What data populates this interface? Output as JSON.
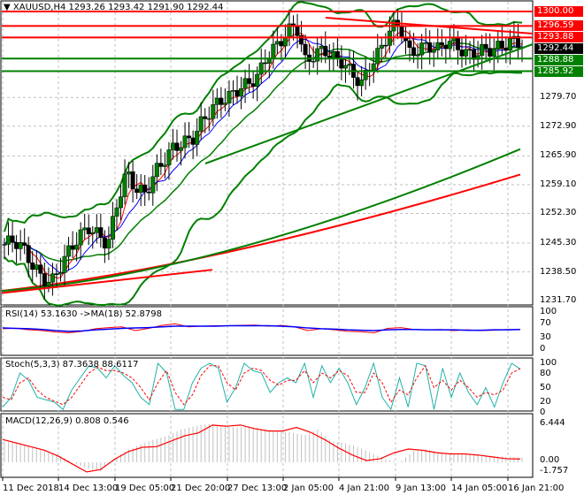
{
  "header": {
    "symbol": "XAUUSD,H4",
    "ohlc": "1293.26 1293.42 1291.90 1292.44"
  },
  "levels": [
    {
      "label": "1300.00",
      "value": 1300.0,
      "color": "#ff0000"
    },
    {
      "label": "1296.59",
      "value": 1296.59,
      "color": "#ff0000"
    },
    {
      "label": "1293.88",
      "value": 1293.88,
      "color": "#ff0000"
    },
    {
      "label": "1292.44",
      "value": 1292.44,
      "color": "#000000"
    },
    {
      "label": "1288.88",
      "value": 1288.88,
      "color": "#008000"
    },
    {
      "label": "1285.92",
      "value": 1285.92,
      "color": "#008000"
    }
  ],
  "price_axis": [
    "1279.70",
    "1272.90",
    "1265.90",
    "1259.10",
    "1252.30",
    "1245.30",
    "1238.50",
    "1231.70"
  ],
  "rsi": {
    "label": "RSI(14) 53.1630  ->MA(18) 52.8798",
    "axis": [
      "100",
      "70",
      "30",
      "0"
    ]
  },
  "stoch": {
    "label": "Stoch(5,3,3) 87.3638 88.6117",
    "axis": [
      "100",
      "80",
      "50",
      "20",
      "0"
    ]
  },
  "macd": {
    "label": "MACD(12,26,9) 0.808 0.546",
    "axis": [
      "6.444",
      "0.00",
      "-1.757"
    ]
  },
  "time_axis": [
    "11 Dec 2018",
    "14 Dec 13:00",
    "19 Dec 05:00",
    "21 Dec 20:00",
    "27 Dec 13:00",
    "2 Jan 05:00",
    "4 Jan 21:00",
    "9 Jan 13:00",
    "14 Jan 05:00",
    "16 Jan 21:00"
  ],
  "colors": {
    "up": "#008000",
    "down": "#000000",
    "bands": "#008000",
    "resistance": "#ff0000",
    "support": "#008000",
    "rsi": "#ff0000",
    "rsi_ma": "#0000ff",
    "stoch_main": "#20b2aa",
    "stoch_signal": "#ff0000",
    "macd_signal": "#ff0000",
    "macd_hist": "#c0c0c0"
  },
  "chart_data": {
    "type": "candlestick",
    "symbol": "XAUUSD",
    "timeframe": "H4",
    "ylim": [
      1231.7,
      1300.0
    ],
    "close_path": [
      1245,
      1246,
      1244,
      1240,
      1237,
      1236,
      1240,
      1244,
      1247,
      1249,
      1247,
      1245,
      1255,
      1262,
      1258,
      1257,
      1262,
      1265,
      1268,
      1269,
      1270,
      1274,
      1277,
      1279,
      1280,
      1282,
      1283,
      1285,
      1290,
      1292,
      1295,
      1297,
      1288,
      1290,
      1291,
      1289,
      1288,
      1285,
      1283,
      1288,
      1291,
      1296,
      1297,
      1290,
      1291,
      1292,
      1291,
      1293,
      1292,
      1290,
      1290,
      1291,
      1291,
      1292,
      1293,
      1292.44
    ],
    "rsi_values": [
      55,
      56,
      52,
      50,
      46,
      44,
      48,
      55,
      58,
      60,
      50,
      56,
      64,
      68,
      60,
      62,
      63,
      63,
      64,
      65,
      62,
      64,
      60,
      50,
      55,
      52,
      48,
      47,
      44,
      56,
      58,
      53,
      52,
      53,
      50,
      52,
      50,
      51,
      53,
      53
    ],
    "rsi_ma_values": [
      57,
      56,
      55,
      53,
      50,
      48,
      49,
      52,
      54,
      56,
      57,
      58,
      60,
      62,
      62,
      62,
      62,
      63,
      63,
      63,
      63,
      62,
      60,
      57,
      55,
      54,
      52,
      51,
      50,
      52,
      53,
      53,
      52,
      52,
      52,
      51,
      51,
      52,
      52,
      53
    ],
    "stoch_k": [
      10,
      30,
      80,
      65,
      30,
      25,
      20,
      5,
      45,
      70,
      95,
      90,
      70,
      95,
      75,
      60,
      30,
      15,
      100,
      80,
      5,
      5,
      60,
      90,
      100,
      90,
      20,
      50,
      100,
      85,
      80,
      40,
      60,
      70,
      60,
      100,
      30,
      95,
      60,
      90,
      60,
      15,
      50,
      100,
      30,
      5,
      70,
      10,
      100,
      95,
      5,
      90,
      30,
      80,
      40,
      15,
      50,
      10,
      60,
      100,
      88
    ],
    "stoch_d": [
      30,
      25,
      60,
      70,
      45,
      30,
      22,
      15,
      30,
      55,
      80,
      92,
      85,
      85,
      80,
      70,
      50,
      25,
      60,
      85,
      40,
      15,
      35,
      75,
      95,
      95,
      60,
      45,
      80,
      90,
      85,
      65,
      55,
      65,
      65,
      85,
      60,
      80,
      70,
      85,
      75,
      40,
      40,
      80,
      60,
      20,
      45,
      35,
      70,
      95,
      50,
      65,
      45,
      65,
      50,
      30,
      40,
      35,
      45,
      80,
      89
    ],
    "macd_hist": [
      3.5,
      3,
      2.5,
      2,
      1.2,
      0,
      -1,
      -1.5,
      0.5,
      2,
      3,
      3.8,
      4.5,
      5.5,
      6,
      6.4,
      6,
      5.8,
      6,
      5.5,
      5.2,
      5,
      4.5,
      5.5,
      3.5,
      3.2,
      2.5,
      1.5,
      0.5,
      0,
      1.8,
      2.2,
      1.6,
      1.4,
      1.3,
      1.2,
      1.0,
      0.9,
      0.8
    ],
    "macd_signal": [
      3.8,
      3.2,
      2.6,
      2.0,
      1.0,
      -0.3,
      -1.6,
      -1.2,
      0.5,
      1.8,
      2.5,
      2.6,
      3.5,
      4.4,
      4.9,
      6.2,
      6.0,
      6.2,
      5.6,
      5.2,
      5.2,
      5.8,
      5.0,
      3.8,
      2.4,
      1.2,
      0.3,
      0.6,
      1.6,
      2.2,
      2.0,
      1.6,
      1.4,
      1.4,
      1.2,
      0.9,
      0.6,
      0.55
    ],
    "time_labels": [
      "11 Dec 2018",
      "14 Dec 13:00",
      "19 Dec 05:00",
      "21 Dec 20:00",
      "27 Dec 13:00",
      "2 Jan 05:00",
      "4 Jan 21:00",
      "9 Jan 13:00",
      "14 Jan 05:00",
      "16 Jan 21:00"
    ],
    "grid": true
  }
}
